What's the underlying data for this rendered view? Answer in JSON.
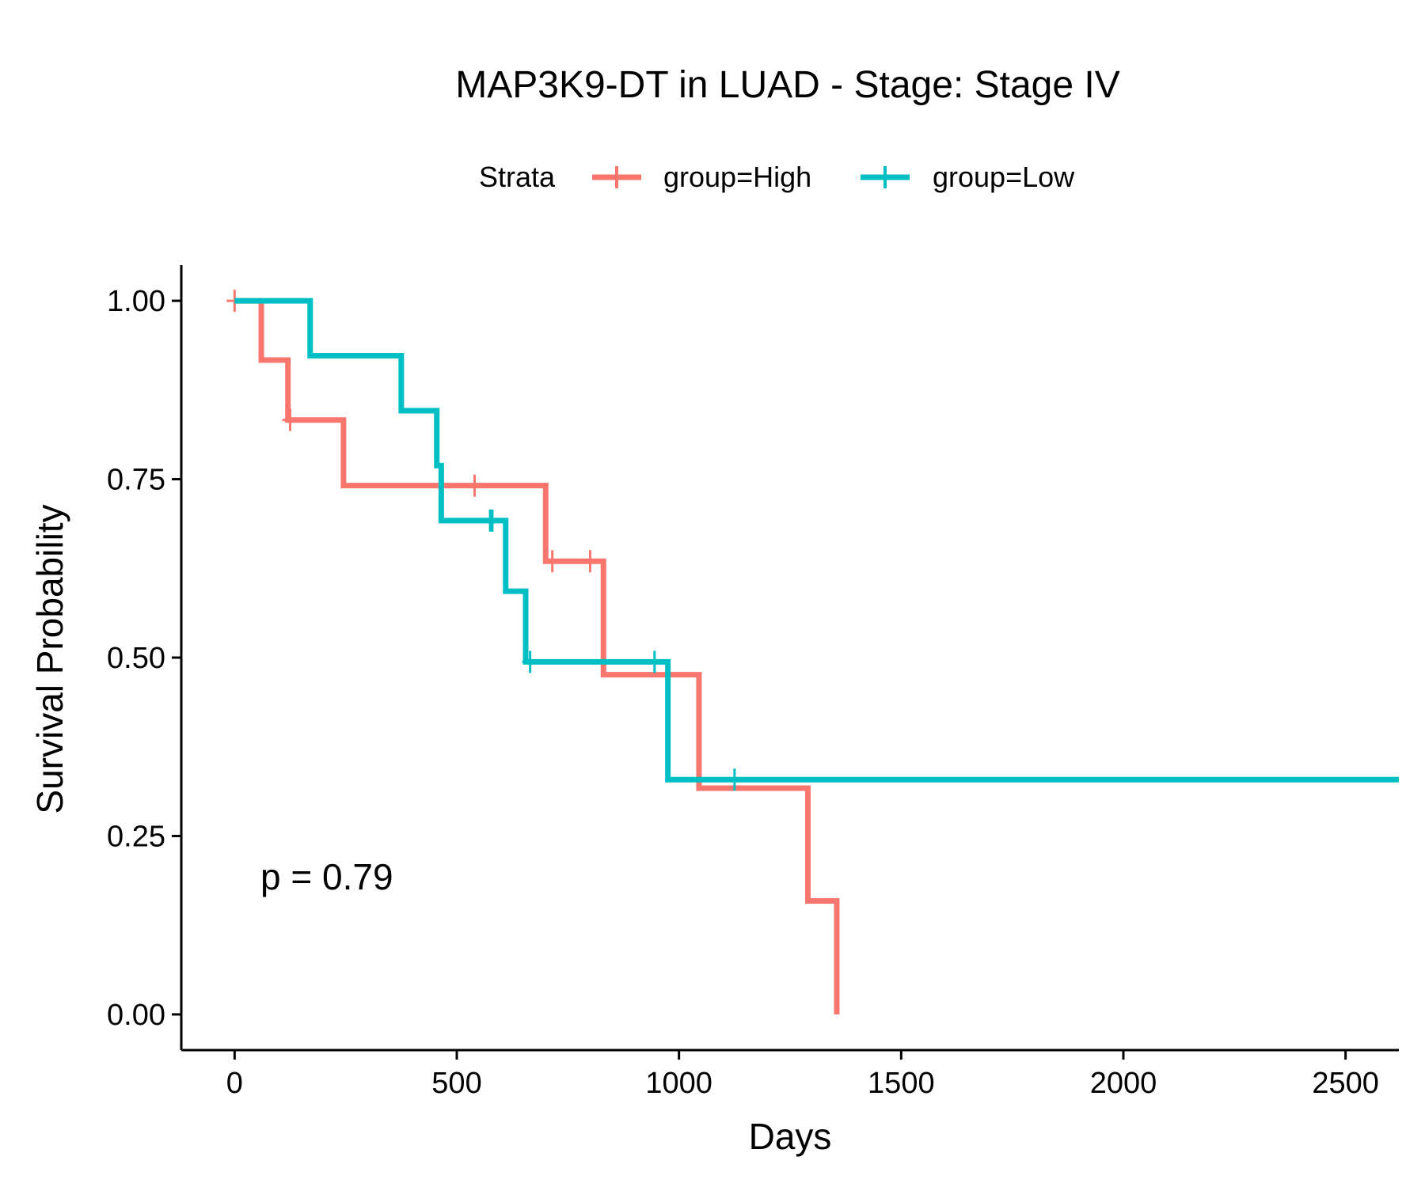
{
  "chart_data": {
    "type": "line",
    "title": "MAP3K9-DT in LUAD - Stage: Stage IV",
    "xlabel": "Days",
    "ylabel": "Survival Probability",
    "xlim": [
      -120,
      2620
    ],
    "ylim": [
      -0.05,
      1.05
    ],
    "x_ticks": [
      0,
      500,
      1000,
      1500,
      2000,
      2500
    ],
    "x_tick_labels": [
      "0",
      "500",
      "1000",
      "1500",
      "2000",
      "2500"
    ],
    "y_ticks": [
      0,
      0.25,
      0.5,
      0.75,
      1
    ],
    "y_tick_labels": [
      "0.00",
      "0.25",
      "0.50",
      "0.75",
      "1.00"
    ],
    "grid": false,
    "legend": {
      "title": "Strata",
      "position": "top"
    },
    "annotation": "p = 0.79",
    "series": [
      {
        "name": "group=High",
        "color": "#F8766D",
        "step_x": [
          0,
          60,
          120,
          245,
          700,
          830,
          1045,
          1290,
          1355
        ],
        "step_y": [
          1.0,
          0.917,
          0.833,
          0.741,
          0.635,
          0.476,
          0.317,
          0.159,
          0.0
        ],
        "censor_x": [
          0,
          125,
          540,
          715,
          800
        ],
        "censor_y": [
          1.0,
          0.833,
          0.741,
          0.635,
          0.635
        ]
      },
      {
        "name": "group=Low",
        "color": "#00BFC4",
        "step_x": [
          0,
          170,
          375,
          455,
          465,
          610,
          655,
          975,
          2620
        ],
        "step_y": [
          1.0,
          0.923,
          0.846,
          0.769,
          0.692,
          0.593,
          0.494,
          0.329,
          0.329
        ],
        "censor_x": [
          575,
          580,
          665,
          945,
          1125
        ],
        "censor_y": [
          0.692,
          0.692,
          0.494,
          0.494,
          0.329
        ]
      }
    ]
  }
}
